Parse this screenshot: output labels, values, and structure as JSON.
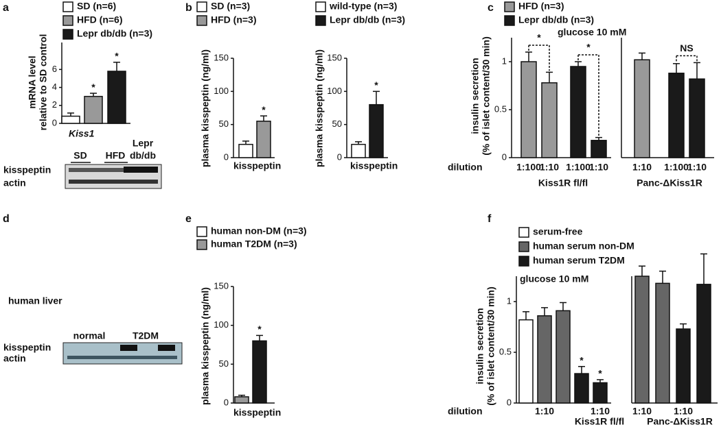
{
  "panel_labels": [
    "a",
    "b",
    "c",
    "d",
    "e",
    "f"
  ],
  "blots": [
    {
      "lanes": [
        "SD",
        "HFD",
        [
          "Lepr",
          "db/db"
        ]
      ],
      "rows": [
        "kisspeptin",
        "actin"
      ]
    },
    {
      "title": "human liver",
      "lanes": [
        "normal",
        "T2DM"
      ],
      "rows": [
        "kisspeptin",
        "actin"
      ]
    }
  ],
  "chart_data": [
    {
      "type": "bar",
      "ylabel": [
        "mRNA level",
        "relative to SD control"
      ],
      "ylim": [
        0,
        9
      ],
      "yticks": [
        0,
        2,
        4,
        6
      ],
      "group_label_italic": true,
      "groups": [
        {
          "name": "Kiss1",
          "categories": [
            null,
            null,
            null
          ]
        }
      ],
      "series": [
        {
          "name": "SD (n=6)",
          "color": "#ffffff",
          "values": [
            0.8,
            null,
            null
          ],
          "errors": [
            0.35,
            null,
            null
          ]
        },
        {
          "name": "HFD (n=6)",
          "color": "#999999",
          "values": [
            null,
            3.0,
            null
          ],
          "errors": [
            null,
            0.35,
            null
          ]
        },
        {
          "name": "Lepr db/db (n=3)",
          "color": "#1a1a1a",
          "values": [
            null,
            null,
            5.8
          ],
          "errors": [
            null,
            null,
            1.0
          ]
        }
      ],
      "annotations": [
        {
          "text": "*",
          "bars": [
            1
          ]
        },
        {
          "text": "*",
          "bars": [
            2
          ]
        }
      ]
    },
    {
      "type": "bar",
      "ylabel": [
        "plasma kisspeptin (ng/ml)"
      ],
      "ylim": [
        0,
        150
      ],
      "yticks": [
        0,
        50,
        100,
        150
      ],
      "groups": [
        {
          "name": "kisspeptin",
          "categories": [
            null,
            null
          ]
        }
      ],
      "series": [
        {
          "name": "SD (n=3)",
          "color": "#ffffff",
          "values": [
            20,
            null
          ],
          "errors": [
            5,
            null
          ]
        },
        {
          "name": "HFD (n=3)",
          "color": "#999999",
          "values": [
            null,
            55
          ],
          "errors": [
            null,
            8
          ]
        }
      ],
      "annotations": [
        {
          "text": "*",
          "bars": [
            1
          ]
        }
      ]
    },
    {
      "type": "bar",
      "ylabel": [
        "plasma kisspeptin (ng/ml)"
      ],
      "ylim": [
        0,
        150
      ],
      "yticks": [
        0,
        50,
        100,
        150
      ],
      "groups": [
        {
          "name": "kisspeptin",
          "categories": [
            null,
            null
          ]
        }
      ],
      "series": [
        {
          "name": "wild-type (n=3)",
          "color": "#ffffff",
          "values": [
            20,
            null
          ],
          "errors": [
            4,
            null
          ]
        },
        {
          "name": "Lepr db/db (n=3)",
          "color": "#1a1a1a",
          "values": [
            null,
            80
          ],
          "errors": [
            null,
            20
          ]
        }
      ],
      "annotations": [
        {
          "text": "*",
          "bars": [
            1
          ]
        }
      ]
    },
    {
      "type": "bar",
      "ylabel": [
        "insulin secretion",
        "(% of islet content/30 min)"
      ],
      "xlabel": "dilution",
      "note": "glucose 10 mM",
      "ylim": [
        0,
        1.25
      ],
      "yticks": [
        0,
        0.5,
        1
      ],
      "groups": [
        {
          "name": "Kiss1R fl/fl",
          "categories": [
            "1:100",
            "1:10",
            "1:100",
            "1:10"
          ]
        },
        {
          "name": "Panc-ΔKiss1R",
          "categories": [
            "1:10",
            "1:100",
            "1:10"
          ]
        }
      ],
      "series": [
        {
          "name": "HFD (n=3)",
          "color": "#999999",
          "values": [
            1.0,
            0.78,
            null,
            null,
            1.02,
            null,
            null
          ],
          "errors": [
            0.1,
            0.11,
            null,
            null,
            0.07,
            null,
            null
          ]
        },
        {
          "name": "Lepr db/db (n=3)",
          "color": "#1a1a1a",
          "values": [
            null,
            null,
            0.95,
            0.18,
            null,
            0.88,
            0.82
          ],
          "errors": [
            null,
            null,
            0.05,
            0.03,
            null,
            0.1,
            0.17
          ]
        }
      ],
      "annotations": [
        {
          "text": "*",
          "bars": [
            0,
            1
          ]
        },
        {
          "text": "*",
          "bars": [
            2,
            3
          ]
        },
        {
          "text": "NS",
          "bars": [
            5,
            6
          ]
        }
      ]
    },
    {
      "type": "bar",
      "ylabel": [
        "plasma kisspeptin (ng/ml)"
      ],
      "ylim": [
        0,
        150
      ],
      "yticks": [
        0,
        50,
        100,
        150
      ],
      "groups": [
        {
          "name": "kisspeptin",
          "categories": [
            null,
            null
          ]
        }
      ],
      "series": [
        {
          "name": "human non-DM (n=3)",
          "color": "#ffffff",
          "bar_color": "#999999",
          "values": [
            8,
            null
          ],
          "errors": [
            2,
            null
          ]
        },
        {
          "name": "human T2DM (n=3)",
          "color": "#999999",
          "bar_color": "#1a1a1a",
          "values": [
            null,
            80
          ],
          "errors": [
            null,
            7
          ]
        }
      ],
      "annotations": [
        {
          "text": "*",
          "bars": [
            1
          ]
        }
      ]
    },
    {
      "type": "bar",
      "ylabel": [
        "insulin secretion",
        "(% of islet content/30 min)"
      ],
      "xlabel": "dilution",
      "note": "glucose 10 mM",
      "ylim": [
        0,
        1.25
      ],
      "yticks": [
        0,
        0.5,
        1
      ],
      "groups": [
        {
          "name": "Kiss1R fl/fl",
          "categories": [
            null,
            "1:10",
            null,
            null,
            "1:10"
          ]
        },
        {
          "name": "Panc-ΔKiss1R",
          "categories": [
            "1:10",
            null,
            "1:10",
            null
          ]
        }
      ],
      "series": [
        {
          "name": "serum-free",
          "color": "#ffffff",
          "values": [
            0.82,
            null,
            null,
            null,
            null,
            null,
            null,
            null,
            null
          ],
          "errors": [
            0.08,
            null,
            null,
            null,
            null,
            null,
            null,
            null,
            null
          ]
        },
        {
          "name": "human serum non-DM",
          "color": "#666666",
          "values": [
            null,
            0.86,
            0.91,
            null,
            null,
            1.25,
            1.18,
            null,
            null
          ],
          "errors": [
            null,
            0.08,
            0.08,
            null,
            null,
            0.1,
            0.12,
            null,
            null
          ]
        },
        {
          "name": "human serum T2DM",
          "color": "#1a1a1a",
          "values": [
            null,
            null,
            null,
            0.29,
            0.2,
            null,
            null,
            0.73,
            1.17
          ],
          "errors": [
            null,
            null,
            null,
            0.07,
            0.03,
            null,
            null,
            0.05,
            0.3
          ]
        }
      ],
      "annotations": [
        {
          "text": "*",
          "bars": [
            3
          ]
        },
        {
          "text": "*",
          "bars": [
            4
          ]
        }
      ]
    }
  ]
}
